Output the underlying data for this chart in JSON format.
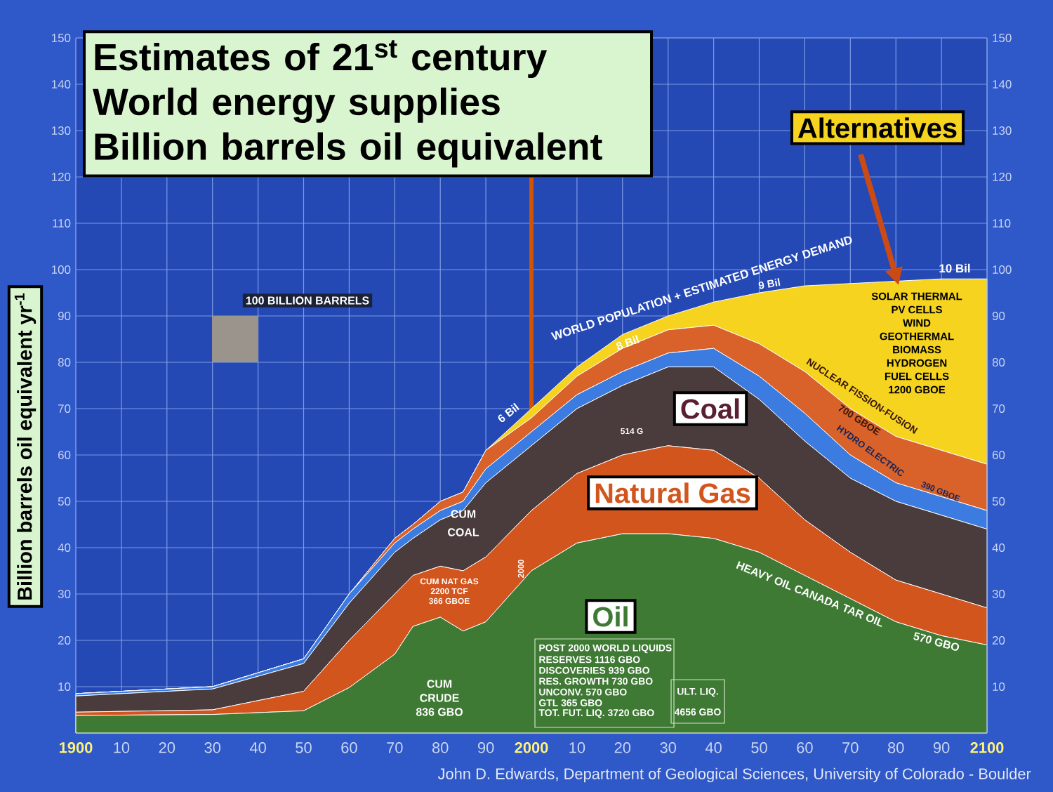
{
  "chart_data": {
    "type": "area",
    "stacked": true,
    "title": "Estimates of 21$^{st}$ century World energy supplies",
    "subtitle": "Billion barrels oil equivalent",
    "ylabel": "Billion barrels oil equivalent yr$^{-1}$",
    "x": [
      1900,
      1930,
      1950,
      1960,
      1970,
      1974,
      1980,
      1985,
      1990,
      2000,
      2010,
      2020,
      2030,
      2040,
      2050,
      2060,
      2070,
      2080,
      2090,
      2100
    ],
    "series": [
      {
        "name": "Oil",
        "color": "#3f7a35",
        "values": [
          3.8,
          4,
          4.8,
          9.8,
          17,
          23,
          25,
          22,
          24,
          35,
          41,
          43,
          43,
          42,
          39,
          34,
          29,
          24,
          21,
          19
        ]
      },
      {
        "name": "Natural Gas",
        "color": "#d2551e",
        "values": [
          0.7,
          1,
          4.2,
          10.2,
          13,
          11,
          11,
          13,
          14,
          13,
          15,
          17,
          19,
          19,
          16,
          12,
          10,
          9,
          9,
          8
        ]
      },
      {
        "name": "Coal",
        "color": "#4a3c3c",
        "values": [
          3.5,
          4.5,
          6,
          8,
          9,
          8,
          10,
          13,
          16,
          14,
          14,
          15,
          17,
          18,
          17,
          17,
          16,
          17,
          17,
          17
        ]
      },
      {
        "color": "#3c7be0",
        "values": [
          0.5,
          0.5,
          1,
          2,
          2,
          2,
          2,
          2,
          3,
          3,
          3,
          3,
          3,
          4,
          5,
          6,
          5,
          4,
          4,
          4
        ]
      },
      {
        "color": "#d8622a",
        "values": [
          0,
          0,
          0,
          0,
          1,
          1,
          2,
          2,
          4,
          3,
          4,
          5,
          5,
          5,
          7,
          9,
          10,
          10,
          10,
          10
        ]
      },
      {
        "name": "Alternatives",
        "color": "#f5d31e",
        "values": [
          0,
          0,
          0,
          0,
          0,
          0,
          0,
          0,
          0,
          2,
          2,
          3,
          3,
          5,
          11,
          18.5,
          27,
          33.5,
          37,
          40
        ]
      }
    ],
    "xlim": [
      1900,
      2100
    ],
    "ylim": [
      0,
      150
    ],
    "xticks": [
      {
        "value": 1900,
        "label": "1900"
      },
      {
        "value": 1910,
        "label": "10"
      },
      {
        "value": 1920,
        "label": "20"
      },
      {
        "value": 1930,
        "label": "30"
      },
      {
        "value": 1940,
        "label": "40"
      },
      {
        "value": 1950,
        "label": "50"
      },
      {
        "value": 1960,
        "label": "60"
      },
      {
        "value": 1970,
        "label": "70"
      },
      {
        "value": 1980,
        "label": "80"
      },
      {
        "value": 1990,
        "label": "90"
      },
      {
        "value": 2000,
        "label": "2000"
      },
      {
        "value": 2010,
        "label": "10"
      },
      {
        "value": 2020,
        "label": "20"
      },
      {
        "value": 2030,
        "label": "30"
      },
      {
        "value": 2040,
        "label": "40"
      },
      {
        "value": 2050,
        "label": "50"
      },
      {
        "value": 2060,
        "label": "60"
      },
      {
        "value": 2070,
        "label": "70"
      },
      {
        "value": 2080,
        "label": "80"
      },
      {
        "value": 2090,
        "label": "90"
      },
      {
        "value": 2100,
        "label": "2100"
      }
    ],
    "yticks": [
      10,
      20,
      30,
      40,
      50,
      60,
      70,
      80,
      90,
      100,
      110,
      120,
      130,
      140,
      150
    ],
    "y2lim": [
      0,
      150
    ],
    "y2ticks": [
      10,
      20,
      30,
      40,
      50,
      60,
      70,
      80,
      90,
      100,
      110,
      120,
      130,
      140,
      150
    ],
    "grid": true,
    "ref_lines": [
      {
        "axis": "x",
        "value": 2000,
        "color": "#d35400"
      }
    ],
    "annotations": [
      "WORLD POPULATION + ESTIMATED ENERGY DEMAND",
      "6 Bil",
      "8 Bil",
      "9 Bil",
      "10 Bil",
      "SOLAR THERMAL",
      "PV CELLS",
      "WIND",
      "GEOTHERMAL",
      "BIOMASS",
      "HYDROGEN",
      "FUEL CELLS",
      "1200 GBOE",
      "NUCLEAR FISSION-FUSION",
      "700 GBOE",
      "HYDRO ELECTRIC",
      "390 GBOE",
      "514 G",
      "CUM",
      "COAL",
      "CUM NAT GAS",
      "2200 TCF",
      "366 GBOE",
      "2000",
      "CUM",
      "CRUDE",
      "836 GBO",
      "HEAVY OIL CANADA TAR OIL",
      "570 GBO",
      "100 BILLION BARRELS",
      "POST 2000 WORLD LIQUIDS",
      "RESERVES 1116 GBO",
      "DISCOVERIES 939 GBO",
      "RES. GROWTH 730 GBO",
      "UNCONV. 570 GBO",
      "GTL 365 GBO",
      "TOT. FUT. LIQ. 3720 GBO",
      "ULT. LIQ.",
      "4656 GBO",
      "John D. Edwards, Department of Geological Sciences, University of Colorado - Boulder"
    ]
  }
}
